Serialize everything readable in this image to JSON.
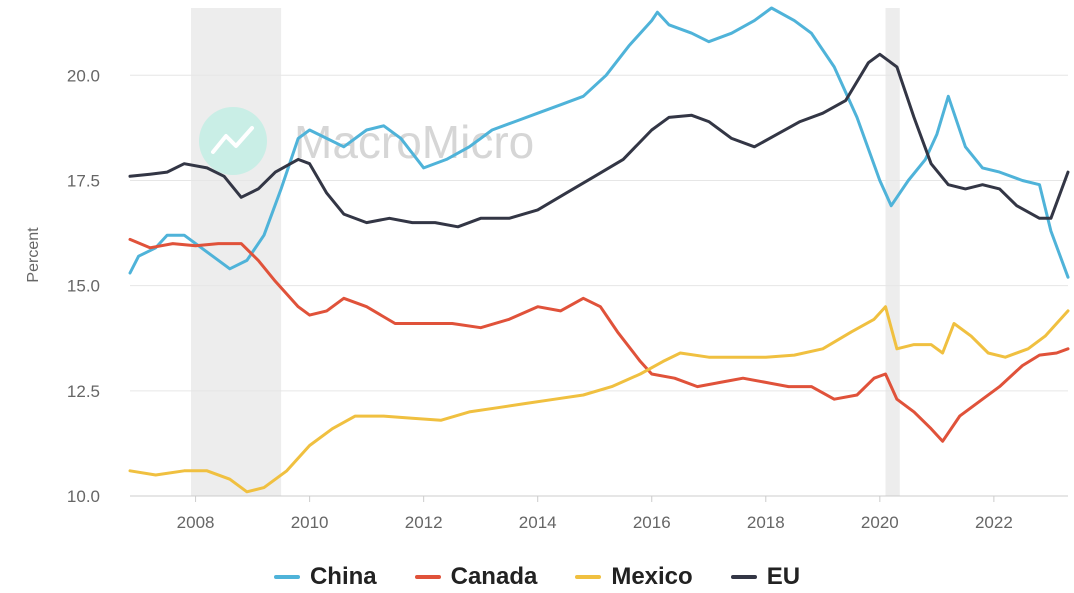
{
  "chart_data": {
    "type": "line",
    "title": "",
    "ylabel": "Percent",
    "xlim": [
      2006.85,
      2023.3
    ],
    "ylim": [
      10,
      21.6
    ],
    "y_ticks": [
      10.0,
      12.5,
      15.0,
      17.5,
      20.0
    ],
    "y_tick_labels": [
      "10.0",
      "12.5",
      "15.0",
      "17.5",
      "20.0"
    ],
    "x_ticks": [
      2008,
      2010,
      2012,
      2014,
      2016,
      2018,
      2020,
      2022
    ],
    "x_tick_labels": [
      "2008",
      "2010",
      "2012",
      "2014",
      "2016",
      "2018",
      "2020",
      "2022"
    ],
    "grid": "horizontal",
    "legend_position": "bottom",
    "watermark": "MacroMicro",
    "shaded_periods": [
      [
        2007.92,
        2009.5
      ],
      [
        2020.1,
        2020.35
      ]
    ],
    "series": [
      {
        "name": "China",
        "color": "#4fb3d9",
        "points": [
          [
            2006.85,
            15.3
          ],
          [
            2007.0,
            15.7
          ],
          [
            2007.3,
            15.9
          ],
          [
            2007.5,
            16.2
          ],
          [
            2007.8,
            16.2
          ],
          [
            2008.0,
            16.0
          ],
          [
            2008.3,
            15.7
          ],
          [
            2008.6,
            15.4
          ],
          [
            2008.9,
            15.6
          ],
          [
            2009.2,
            16.2
          ],
          [
            2009.5,
            17.3
          ],
          [
            2009.8,
            18.5
          ],
          [
            2010.0,
            18.7
          ],
          [
            2010.3,
            18.5
          ],
          [
            2010.6,
            18.3
          ],
          [
            2011.0,
            18.7
          ],
          [
            2011.3,
            18.8
          ],
          [
            2011.6,
            18.5
          ],
          [
            2012.0,
            17.8
          ],
          [
            2012.4,
            18.0
          ],
          [
            2012.8,
            18.3
          ],
          [
            2013.2,
            18.7
          ],
          [
            2013.6,
            18.9
          ],
          [
            2014.0,
            19.1
          ],
          [
            2014.4,
            19.3
          ],
          [
            2014.8,
            19.5
          ],
          [
            2015.2,
            20.0
          ],
          [
            2015.6,
            20.7
          ],
          [
            2016.0,
            21.3
          ],
          [
            2016.1,
            21.5
          ],
          [
            2016.3,
            21.2
          ],
          [
            2016.7,
            21.0
          ],
          [
            2017.0,
            20.8
          ],
          [
            2017.4,
            21.0
          ],
          [
            2017.8,
            21.3
          ],
          [
            2018.1,
            21.6
          ],
          [
            2018.5,
            21.3
          ],
          [
            2018.8,
            21.0
          ],
          [
            2019.2,
            20.2
          ],
          [
            2019.6,
            19.0
          ],
          [
            2020.0,
            17.5
          ],
          [
            2020.2,
            16.9
          ],
          [
            2020.5,
            17.5
          ],
          [
            2020.8,
            18.0
          ],
          [
            2021.0,
            18.6
          ],
          [
            2021.2,
            19.5
          ],
          [
            2021.5,
            18.3
          ],
          [
            2021.8,
            17.8
          ],
          [
            2022.1,
            17.7
          ],
          [
            2022.5,
            17.5
          ],
          [
            2022.8,
            17.4
          ],
          [
            2023.0,
            16.3
          ],
          [
            2023.3,
            15.2
          ]
        ]
      },
      {
        "name": "Canada",
        "color": "#e0523a",
        "points": [
          [
            2006.85,
            16.1
          ],
          [
            2007.2,
            15.9
          ],
          [
            2007.6,
            16.0
          ],
          [
            2008.0,
            15.95
          ],
          [
            2008.4,
            16.0
          ],
          [
            2008.8,
            16.0
          ],
          [
            2009.1,
            15.6
          ],
          [
            2009.4,
            15.1
          ],
          [
            2009.8,
            14.5
          ],
          [
            2010.0,
            14.3
          ],
          [
            2010.3,
            14.4
          ],
          [
            2010.6,
            14.7
          ],
          [
            2011.0,
            14.5
          ],
          [
            2011.5,
            14.1
          ],
          [
            2012.0,
            14.1
          ],
          [
            2012.5,
            14.1
          ],
          [
            2013.0,
            14.0
          ],
          [
            2013.5,
            14.2
          ],
          [
            2014.0,
            14.5
          ],
          [
            2014.4,
            14.4
          ],
          [
            2014.8,
            14.7
          ],
          [
            2015.1,
            14.5
          ],
          [
            2015.4,
            13.9
          ],
          [
            2015.8,
            13.2
          ],
          [
            2016.0,
            12.9
          ],
          [
            2016.4,
            12.8
          ],
          [
            2016.8,
            12.6
          ],
          [
            2017.2,
            12.7
          ],
          [
            2017.6,
            12.8
          ],
          [
            2018.0,
            12.7
          ],
          [
            2018.4,
            12.6
          ],
          [
            2018.8,
            12.6
          ],
          [
            2019.2,
            12.3
          ],
          [
            2019.6,
            12.4
          ],
          [
            2019.9,
            12.8
          ],
          [
            2020.1,
            12.9
          ],
          [
            2020.3,
            12.3
          ],
          [
            2020.6,
            12.0
          ],
          [
            2020.9,
            11.6
          ],
          [
            2021.1,
            11.3
          ],
          [
            2021.4,
            11.9
          ],
          [
            2021.8,
            12.3
          ],
          [
            2022.1,
            12.6
          ],
          [
            2022.5,
            13.1
          ],
          [
            2022.8,
            13.35
          ],
          [
            2023.1,
            13.4
          ],
          [
            2023.3,
            13.5
          ]
        ]
      },
      {
        "name": "Mexico",
        "color": "#f0c040",
        "points": [
          [
            2006.85,
            10.6
          ],
          [
            2007.3,
            10.5
          ],
          [
            2007.8,
            10.6
          ],
          [
            2008.2,
            10.6
          ],
          [
            2008.6,
            10.4
          ],
          [
            2008.9,
            10.1
          ],
          [
            2009.2,
            10.2
          ],
          [
            2009.6,
            10.6
          ],
          [
            2010.0,
            11.2
          ],
          [
            2010.4,
            11.6
          ],
          [
            2010.8,
            11.9
          ],
          [
            2011.3,
            11.9
          ],
          [
            2011.8,
            11.85
          ],
          [
            2012.3,
            11.8
          ],
          [
            2012.8,
            12.0
          ],
          [
            2013.3,
            12.1
          ],
          [
            2013.8,
            12.2
          ],
          [
            2014.3,
            12.3
          ],
          [
            2014.8,
            12.4
          ],
          [
            2015.3,
            12.6
          ],
          [
            2015.8,
            12.9
          ],
          [
            2016.2,
            13.2
          ],
          [
            2016.5,
            13.4
          ],
          [
            2017.0,
            13.3
          ],
          [
            2017.5,
            13.3
          ],
          [
            2018.0,
            13.3
          ],
          [
            2018.5,
            13.35
          ],
          [
            2019.0,
            13.5
          ],
          [
            2019.5,
            13.9
          ],
          [
            2019.9,
            14.2
          ],
          [
            2020.1,
            14.5
          ],
          [
            2020.3,
            13.5
          ],
          [
            2020.6,
            13.6
          ],
          [
            2020.9,
            13.6
          ],
          [
            2021.1,
            13.4
          ],
          [
            2021.3,
            14.1
          ],
          [
            2021.6,
            13.8
          ],
          [
            2021.9,
            13.4
          ],
          [
            2022.2,
            13.3
          ],
          [
            2022.6,
            13.5
          ],
          [
            2022.9,
            13.8
          ],
          [
            2023.3,
            14.4
          ]
        ]
      },
      {
        "name": "EU",
        "color": "#333645",
        "points": [
          [
            2006.85,
            17.6
          ],
          [
            2007.2,
            17.65
          ],
          [
            2007.5,
            17.7
          ],
          [
            2007.8,
            17.9
          ],
          [
            2008.2,
            17.8
          ],
          [
            2008.5,
            17.6
          ],
          [
            2008.8,
            17.1
          ],
          [
            2009.1,
            17.3
          ],
          [
            2009.4,
            17.7
          ],
          [
            2009.8,
            18.0
          ],
          [
            2010.0,
            17.9
          ],
          [
            2010.3,
            17.2
          ],
          [
            2010.6,
            16.7
          ],
          [
            2011.0,
            16.5
          ],
          [
            2011.4,
            16.6
          ],
          [
            2011.8,
            16.5
          ],
          [
            2012.2,
            16.5
          ],
          [
            2012.6,
            16.4
          ],
          [
            2013.0,
            16.6
          ],
          [
            2013.5,
            16.6
          ],
          [
            2014.0,
            16.8
          ],
          [
            2014.5,
            17.2
          ],
          [
            2015.0,
            17.6
          ],
          [
            2015.5,
            18.0
          ],
          [
            2016.0,
            18.7
          ],
          [
            2016.3,
            19.0
          ],
          [
            2016.7,
            19.05
          ],
          [
            2017.0,
            18.9
          ],
          [
            2017.4,
            18.5
          ],
          [
            2017.8,
            18.3
          ],
          [
            2018.2,
            18.6
          ],
          [
            2018.6,
            18.9
          ],
          [
            2019.0,
            19.1
          ],
          [
            2019.4,
            19.4
          ],
          [
            2019.8,
            20.3
          ],
          [
            2020.0,
            20.5
          ],
          [
            2020.3,
            20.2
          ],
          [
            2020.6,
            19.0
          ],
          [
            2020.9,
            17.9
          ],
          [
            2021.2,
            17.4
          ],
          [
            2021.5,
            17.3
          ],
          [
            2021.8,
            17.4
          ],
          [
            2022.1,
            17.3
          ],
          [
            2022.4,
            16.9
          ],
          [
            2022.8,
            16.6
          ],
          [
            2023.0,
            16.6
          ],
          [
            2023.3,
            17.7
          ]
        ]
      }
    ]
  }
}
